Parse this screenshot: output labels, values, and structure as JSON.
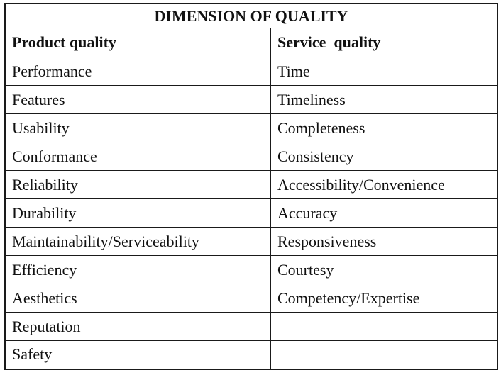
{
  "table": {
    "title": "DIMENSION OF QUALITY",
    "columns": [
      "Product quality",
      "Service  quality"
    ],
    "rows": [
      [
        "Performance",
        "Time"
      ],
      [
        "Features",
        "Timeliness"
      ],
      [
        "Usability",
        "Completeness"
      ],
      [
        "Conformance",
        "Consistency"
      ],
      [
        "Reliability",
        "Accessibility/Convenience"
      ],
      [
        "Durability",
        "Accuracy"
      ],
      [
        "Maintainability/Serviceability",
        "Responsiveness"
      ],
      [
        "Efficiency",
        "Courtesy"
      ],
      [
        "Aesthetics",
        "Competency/Expertise"
      ],
      [
        "Reputation",
        ""
      ],
      [
        "Safety",
        ""
      ]
    ]
  }
}
